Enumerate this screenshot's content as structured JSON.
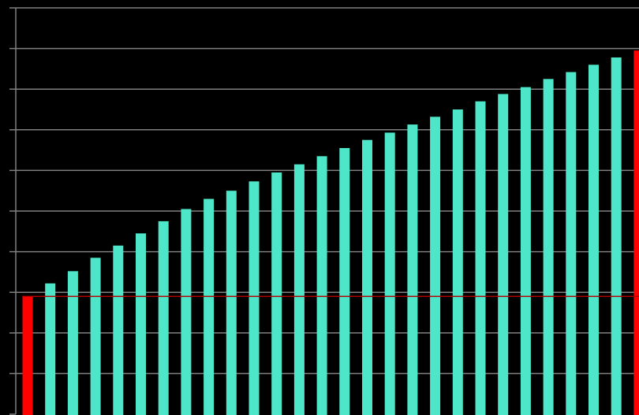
{
  "chart_data": {
    "type": "bar",
    "ylim": [
      0,
      10
    ],
    "grid": true,
    "gridlines": [
      1,
      2,
      3,
      4,
      5,
      6,
      7,
      8,
      9,
      10
    ],
    "baseline": 2.9,
    "values": [
      2.9,
      3.22,
      3.52,
      3.85,
      4.15,
      4.45,
      4.75,
      5.05,
      5.3,
      5.5,
      5.73,
      5.95,
      6.15,
      6.35,
      6.55,
      6.75,
      6.93,
      7.13,
      7.32,
      7.5,
      7.7,
      7.88,
      8.05,
      8.25,
      8.42,
      8.6,
      8.78,
      8.95
    ],
    "highlighted_indices": [
      0,
      27
    ],
    "colors": {
      "background": "#000000",
      "bar": "#4de6c8",
      "highlight": "#ff0000",
      "gridline": "#808080",
      "axis": "#808080",
      "baseline": "#b30000"
    }
  }
}
